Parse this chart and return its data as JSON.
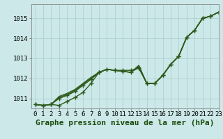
{
  "title": "Graphe pression niveau de la mer (hPa)",
  "background_color": "#cce8e8",
  "grid_color": "#aacccc",
  "line_color": "#2d5a1b",
  "x_labels": [
    "0",
    "1",
    "2",
    "3",
    "4",
    "5",
    "6",
    "7",
    "8",
    "9",
    "10",
    "11",
    "12",
    "13",
    "14",
    "15",
    "16",
    "17",
    "18",
    "19",
    "20",
    "21",
    "22",
    "23"
  ],
  "xlim": [
    -0.5,
    23.0
  ],
  "ylim": [
    1010.5,
    1015.7
  ],
  "yticks": [
    1011,
    1012,
    1013,
    1014,
    1015
  ],
  "series": [
    {
      "y": [
        1010.7,
        1010.65,
        1010.7,
        1010.65,
        1010.85,
        1011.05,
        1011.3,
        1011.75,
        1012.3,
        1012.45,
        1012.4,
        1012.4,
        1012.4,
        1012.5,
        1011.75,
        1011.75,
        1012.15,
        1012.7,
        1013.1,
        1014.05,
        1014.4,
        1015.0,
        1015.1,
        1015.3
      ],
      "marker": true,
      "linewidth": 1.0
    },
    {
      "y": [
        1010.7,
        1010.65,
        1010.7,
        1011.0,
        1011.15,
        1011.35,
        1011.65,
        1011.95,
        1012.3,
        1012.45,
        1012.4,
        1012.35,
        1012.3,
        1012.55,
        1011.75,
        1011.75,
        1012.15,
        1012.7,
        1013.1,
        1014.05,
        1014.4,
        1015.0,
        1015.1,
        1015.3
      ],
      "marker": true,
      "linewidth": 1.0
    },
    {
      "y": [
        1010.7,
        1010.65,
        1010.7,
        1011.05,
        1011.2,
        1011.4,
        1011.7,
        1012.0,
        1012.3,
        1012.45,
        1012.4,
        1012.35,
        1012.3,
        1012.6,
        1011.75,
        1011.75,
        1012.15,
        1012.7,
        1013.1,
        1014.05,
        1014.4,
        1015.0,
        1015.1,
        1015.3
      ],
      "marker": false,
      "linewidth": 1.0
    },
    {
      "y": [
        1010.7,
        1010.65,
        1010.7,
        1011.1,
        1011.25,
        1011.45,
        1011.75,
        1012.05,
        1012.3,
        1012.45,
        1012.4,
        1012.35,
        1012.3,
        1012.65,
        1011.75,
        1011.75,
        1012.15,
        1012.7,
        1013.1,
        1014.05,
        1014.4,
        1015.0,
        1015.1,
        1015.3
      ],
      "marker": false,
      "linewidth": 1.0
    }
  ],
  "marker_style": "+",
  "marker_size": 4,
  "marker_linewidth": 1.0,
  "title_fontsize": 8,
  "tick_fontsize": 6.5,
  "label_color": "#1a4a0a"
}
